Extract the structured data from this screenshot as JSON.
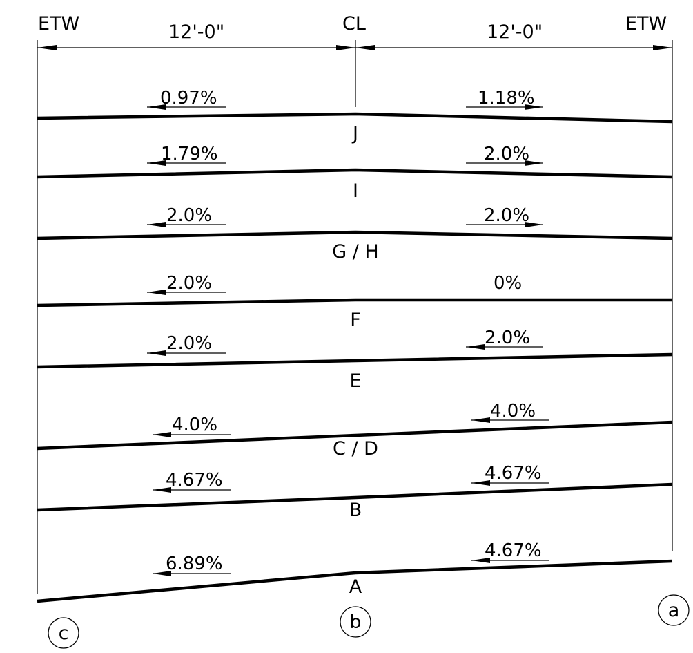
{
  "header": {
    "left_label": "ETW",
    "center_label": "CL",
    "right_label": "ETW",
    "left_dimension": "12'-0\"",
    "right_dimension": "12'-0\""
  },
  "sections": [
    {
      "name": "J",
      "left_slope": "0.97%",
      "right_slope": "1.18%",
      "left_dir": "left",
      "right_dir": "right"
    },
    {
      "name": "I",
      "left_slope": "1.79%",
      "right_slope": "2.0%",
      "left_dir": "left",
      "right_dir": "right"
    },
    {
      "name": "G / H",
      "left_slope": "2.0%",
      "right_slope": "2.0%",
      "left_dir": "left",
      "right_dir": "right"
    },
    {
      "name": "F",
      "left_slope": "2.0%",
      "right_slope": "0%",
      "left_dir": "left",
      "right_dir": "none"
    },
    {
      "name": "E",
      "left_slope": "2.0%",
      "right_slope": "2.0%",
      "left_dir": "left",
      "right_dir": "left"
    },
    {
      "name": "C / D",
      "left_slope": "4.0%",
      "right_slope": "4.0%",
      "left_dir": "left",
      "right_dir": "left"
    },
    {
      "name": "B",
      "left_slope": "4.67%",
      "right_slope": "4.67%",
      "left_dir": "left",
      "right_dir": "left"
    },
    {
      "name": "A",
      "left_slope": "6.89%",
      "right_slope": "4.67%",
      "left_dir": "left",
      "right_dir": "left"
    }
  ],
  "points": {
    "left": "c",
    "center": "b",
    "right": "a"
  }
}
